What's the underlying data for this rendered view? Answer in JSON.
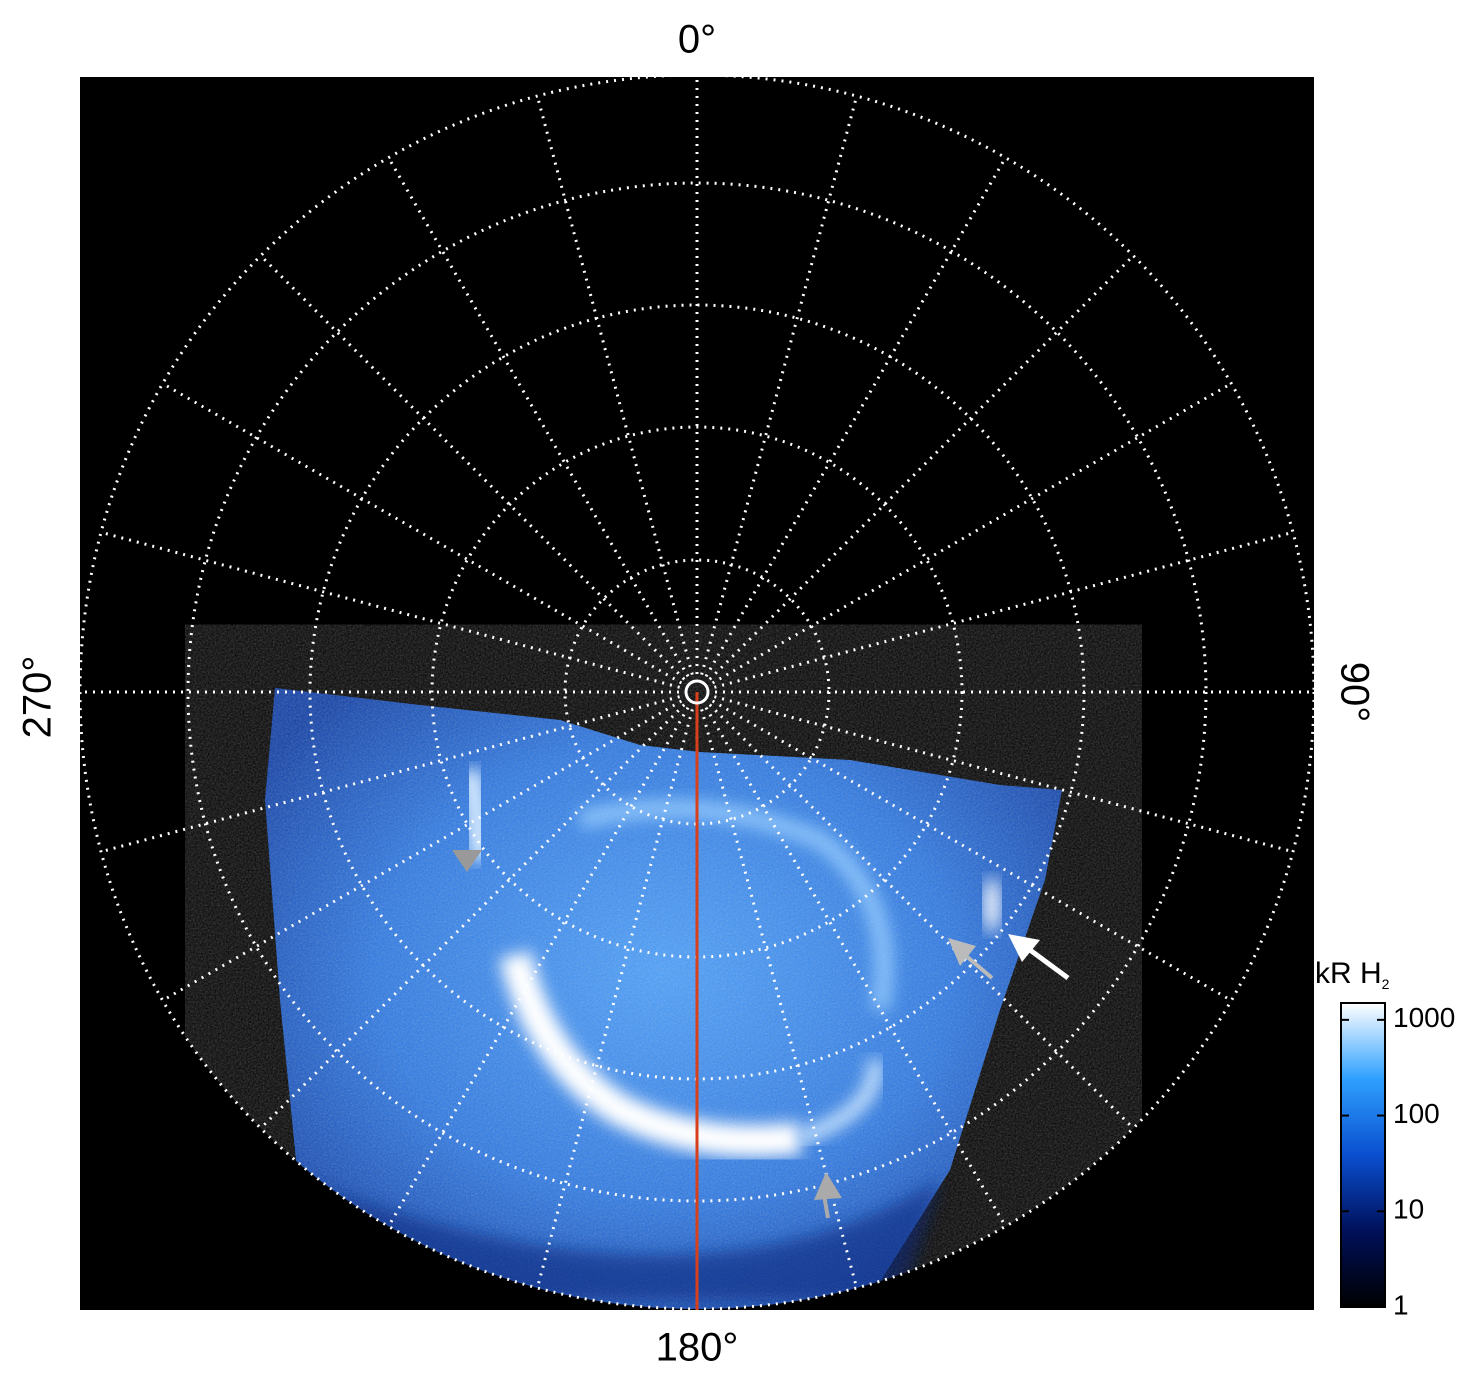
{
  "labels": {
    "top": "0°",
    "right": "90°",
    "bottom": "180°",
    "left": "270°"
  },
  "colorbar": {
    "title": "kR H",
    "title_subscript": "2",
    "scale": "log",
    "lim": [
      1,
      1500
    ],
    "ticks": [
      1,
      10,
      100,
      1000
    ]
  }
}
